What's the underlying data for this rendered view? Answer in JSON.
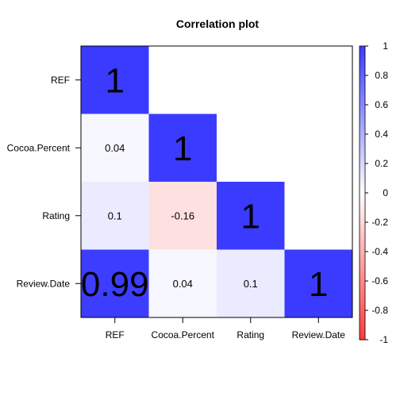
{
  "chart_data": {
    "type": "heatmap",
    "title": "Correlation plot",
    "variables": [
      "REF",
      "Cocoa.Percent",
      "Rating",
      "Review.Date"
    ],
    "matrix": [
      [
        1,
        0.04,
        0.1,
        0.99
      ],
      [
        0.04,
        1,
        -0.16,
        0.04
      ],
      [
        0.1,
        -0.16,
        1,
        0.1
      ],
      [
        0.99,
        0.04,
        0.1,
        1
      ]
    ],
    "cells": [
      {
        "row": "REF",
        "col": "REF",
        "value": 1,
        "label": "1"
      },
      {
        "row": "Cocoa.Percent",
        "col": "REF",
        "value": 0.04,
        "label": "0.04"
      },
      {
        "row": "Cocoa.Percent",
        "col": "Cocoa.Percent",
        "value": 1,
        "label": "1"
      },
      {
        "row": "Rating",
        "col": "REF",
        "value": 0.1,
        "label": "0.1"
      },
      {
        "row": "Rating",
        "col": "Cocoa.Percent",
        "value": -0.16,
        "label": "-0.16"
      },
      {
        "row": "Rating",
        "col": "Rating",
        "value": 1,
        "label": "1"
      },
      {
        "row": "Review.Date",
        "col": "REF",
        "value": 0.99,
        "label": "0.99"
      },
      {
        "row": "Review.Date",
        "col": "Cocoa.Percent",
        "value": 0.04,
        "label": "0.04"
      },
      {
        "row": "Review.Date",
        "col": "Rating",
        "value": 0.1,
        "label": "0.1"
      },
      {
        "row": "Review.Date",
        "col": "Review.Date",
        "value": 1,
        "label": "1"
      }
    ],
    "triangle": "lower",
    "colorbar": {
      "range": [
        -1,
        1
      ],
      "ticks": [
        1,
        0.8,
        0.6,
        0.4,
        0.2,
        0,
        -0.2,
        -0.4,
        -0.6,
        -0.8,
        -1
      ],
      "tick_labels": [
        "1",
        "0.8",
        "0.6",
        "0.4",
        "0.2",
        "0",
        "-0.2",
        "-0.4",
        "-0.6",
        "-0.8",
        "-1"
      ],
      "color_pos": "#3b3bff",
      "color_zero": "#ffffff",
      "color_neg": "#ff3b3b"
    }
  }
}
